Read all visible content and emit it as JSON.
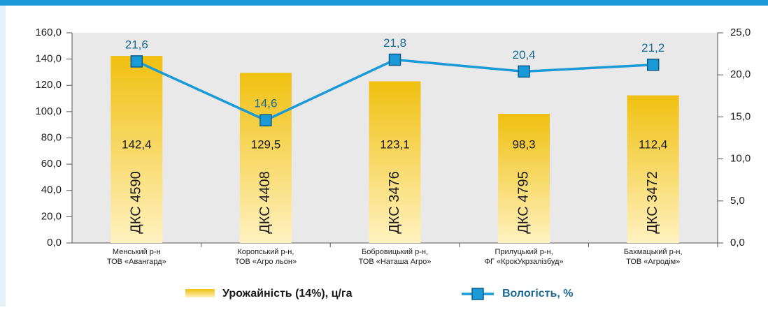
{
  "chart_data": {
    "type": "bar",
    "categories": [
      [
        "Менський р-н",
        "ТОВ «Авангард»"
      ],
      [
        "Коропський р-н,",
        "ТОВ «Агро льон»"
      ],
      [
        "Бобровицький р-н,",
        "ТОВ «Наташа Агро»"
      ],
      [
        "Прилуцький р-н,",
        "ФГ «КрокУкрзалізбуд»"
      ],
      [
        "Бахмацький р-н,",
        "ТОВ «Агродім»"
      ]
    ],
    "bar_labels": [
      "ДКС 4590",
      "ДКС 4408",
      "ДКС 3476",
      "ДКС 4795",
      "ДКС 3472"
    ],
    "series": [
      {
        "name": "Урожайність (14%), ц/га",
        "color": "#f0c010",
        "values": [
          142.4,
          129.5,
          123.1,
          98.3,
          112.4
        ],
        "value_labels": [
          "142,4",
          "129,5",
          "123,1",
          "98,3",
          "112,4"
        ]
      },
      {
        "name": "Вологість, %",
        "color": "#1a9ad6",
        "axis": "y2",
        "type": "line",
        "values": [
          21.6,
          14.6,
          21.8,
          20.4,
          21.2
        ],
        "value_labels": [
          "21,6",
          "14,6",
          "21,8",
          "20,4",
          "21,2"
        ]
      }
    ],
    "ylim": [
      0,
      160
    ],
    "yticks": [
      {
        "value": 0,
        "label": "0,0"
      },
      {
        "value": 20,
        "label": "20,0"
      },
      {
        "value": 40,
        "label": "40,0"
      },
      {
        "value": 60,
        "label": "60,0"
      },
      {
        "value": 80,
        "label": "80,0"
      },
      {
        "value": 100,
        "label": "100,0"
      },
      {
        "value": 120,
        "label": "120,0"
      },
      {
        "value": 140,
        "label": "140,0"
      },
      {
        "value": 160,
        "label": "160,0"
      }
    ],
    "y2lim": [
      0,
      25
    ],
    "y2ticks": [
      {
        "value": 0,
        "label": "0,0"
      },
      {
        "value": 5,
        "label": "5,0"
      },
      {
        "value": 10,
        "label": "10,0"
      },
      {
        "value": 15,
        "label": "15,0"
      },
      {
        "value": 20,
        "label": "20,0"
      },
      {
        "value": 25,
        "label": "25,0"
      }
    ]
  }
}
